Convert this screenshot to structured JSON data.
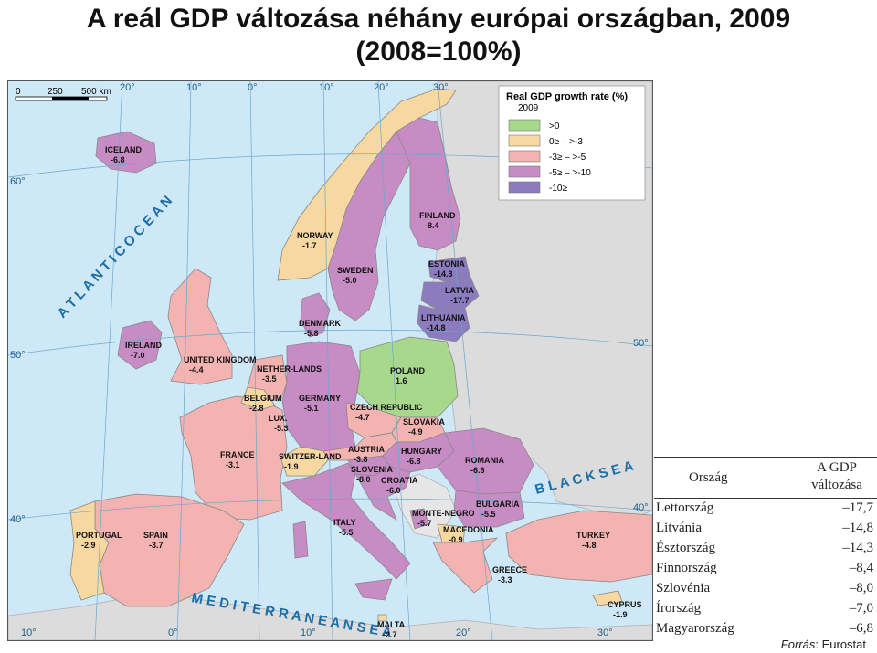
{
  "title_line1": "A reál GDP változása néhány európai országban, 2009",
  "title_line2": "(2008=100%)",
  "map": {
    "scale": {
      "zero": "0",
      "mid": "250",
      "end": "500 km"
    },
    "legend": {
      "title": "Real GDP growth rate (%)",
      "year": "2009",
      "classes": [
        {
          "label": ">0",
          "color": "#a8d88c"
        },
        {
          "label": "0≥ – >-3",
          "color": "#f6d8a0"
        },
        {
          "label": "-3≥ – >-5",
          "color": "#f2b3b1"
        },
        {
          "label": "-5≥ – >-10",
          "color": "#c78cc4"
        },
        {
          "label": "-10≥",
          "color": "#8c7bbf"
        }
      ]
    },
    "graticule": [
      "20°",
      "10°",
      "0°",
      "10°",
      "20°",
      "30°",
      "60°",
      "50°",
      "40°",
      "50°",
      "40°",
      "10°",
      "0°",
      "10°",
      "20°",
      "30°"
    ],
    "seas": {
      "atlantic": "A T L A N T I C   O C E A N",
      "black": "B L A C K   S E A",
      "med": "M E D I T E R R A N E A N   S E A"
    },
    "countries": [
      {
        "name": "ICELAND",
        "value": "-6.8",
        "color": "#c78cc4"
      },
      {
        "name": "NORWAY",
        "value": "-1.7",
        "color": "#f6d8a0"
      },
      {
        "name": "SWEDEN",
        "value": "-5.0",
        "color": "#c78cc4"
      },
      {
        "name": "FINLAND",
        "value": "-8.4",
        "color": "#c78cc4"
      },
      {
        "name": "ESTONIA",
        "value": "-14.3",
        "color": "#8c7bbf"
      },
      {
        "name": "LATVIA",
        "value": "-17.7",
        "color": "#8c7bbf"
      },
      {
        "name": "LITHUANIA",
        "value": "-14.8",
        "color": "#8c7bbf"
      },
      {
        "name": "DENMARK",
        "value": "-5.8",
        "color": "#c78cc4"
      },
      {
        "name": "IRELAND",
        "value": "-7.0",
        "color": "#c78cc4"
      },
      {
        "name": "UNITED KINGDOM",
        "value": "-4.4",
        "color": "#f2b3b1"
      },
      {
        "name": "NETHER-LANDS",
        "value": "-3.5",
        "color": "#f2b3b1"
      },
      {
        "name": "BELGIUM",
        "value": "-2.8",
        "color": "#f6d8a0"
      },
      {
        "name": "LUX.",
        "value": "-5.3",
        "color": "#c78cc4"
      },
      {
        "name": "GERMANY",
        "value": "-5.1",
        "color": "#c78cc4"
      },
      {
        "name": "POLAND",
        "value": "1.6",
        "color": "#a8d88c"
      },
      {
        "name": "CZECH REPUBLIC",
        "value": "-4.7",
        "color": "#f2b3b1"
      },
      {
        "name": "SLOVAKIA",
        "value": "-4.9",
        "color": "#f2b3b1"
      },
      {
        "name": "FRANCE",
        "value": "-3.1",
        "color": "#f2b3b1"
      },
      {
        "name": "SWITZER-LAND",
        "value": "-1.9",
        "color": "#f6d8a0"
      },
      {
        "name": "AUSTRIA",
        "value": "-3.8",
        "color": "#f2b3b1"
      },
      {
        "name": "HUNGARY",
        "value": "-6.8",
        "color": "#c78cc4"
      },
      {
        "name": "ROMANIA",
        "value": "-6.6",
        "color": "#c78cc4"
      },
      {
        "name": "SLOVENIA",
        "value": "-8.0",
        "color": "#c78cc4"
      },
      {
        "name": "CROATIA",
        "value": "-6.0",
        "color": "#c78cc4"
      },
      {
        "name": "ITALY",
        "value": "-5.5",
        "color": "#c78cc4"
      },
      {
        "name": "MONTE-NEGRO",
        "value": "-5.7",
        "color": "#c78cc4"
      },
      {
        "name": "BULGARIA",
        "value": "-5.5",
        "color": "#c78cc4"
      },
      {
        "name": "MACEDONIA",
        "value": "-0.9",
        "color": "#f6d8a0"
      },
      {
        "name": "PORTUGAL",
        "value": "-2.9",
        "color": "#f6d8a0"
      },
      {
        "name": "SPAIN",
        "value": "-3.7",
        "color": "#f2b3b1"
      },
      {
        "name": "TURKEY",
        "value": "-4.8",
        "color": "#f2b3b1"
      },
      {
        "name": "GREECE",
        "value": "-3.3",
        "color": "#f2b3b1"
      },
      {
        "name": "CYPRUS",
        "value": "-1.9",
        "color": "#f6d8a0"
      },
      {
        "name": "MALTA",
        "value": "-2.7",
        "color": "#f6d8a0"
      }
    ]
  },
  "table": {
    "col_country": "Ország",
    "col_gdp_line1": "A GDP",
    "col_gdp_line2": "változása",
    "rows": [
      {
        "country": "Lettország",
        "value": "–17,7"
      },
      {
        "country": "Litvánia",
        "value": "–14,8"
      },
      {
        "country": "Észtország",
        "value": "–14,3"
      },
      {
        "country": "Finnország",
        "value": "–8,4"
      },
      {
        "country": "Szlovénia",
        "value": "–8,0"
      },
      {
        "country": "Írország",
        "value": "–7,0"
      },
      {
        "country": "Magyarország",
        "value": "–6,8"
      }
    ],
    "source_label": "Forrás",
    "source_rest": ": Eurostat"
  }
}
